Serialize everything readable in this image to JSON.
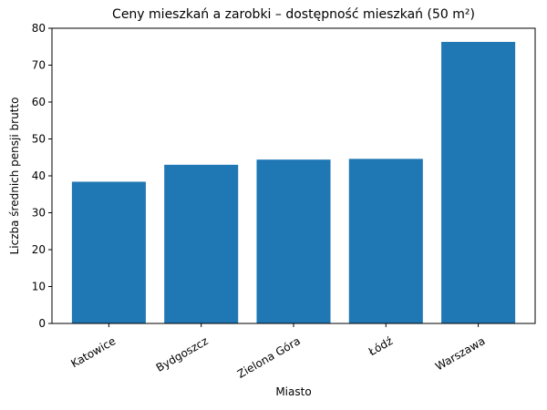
{
  "chart_data": {
    "type": "bar",
    "title": "Ceny mieszkań a zarobki – dostępność mieszkań (50 m²)",
    "x_label": "Miasto",
    "y_label": "Liczba średnich pensji brutto",
    "categories": [
      "Katowice",
      "Bydgoszcz",
      "Zielona Góra",
      "Łódź",
      "Warszawa"
    ],
    "values": [
      38.4,
      43.0,
      44.4,
      44.6,
      76.3
    ],
    "color": "#1f77b4",
    "ylim": [
      0,
      80
    ],
    "yticks": [
      0,
      10,
      20,
      30,
      40,
      50,
      60,
      70,
      80
    ],
    "grid": false
  }
}
